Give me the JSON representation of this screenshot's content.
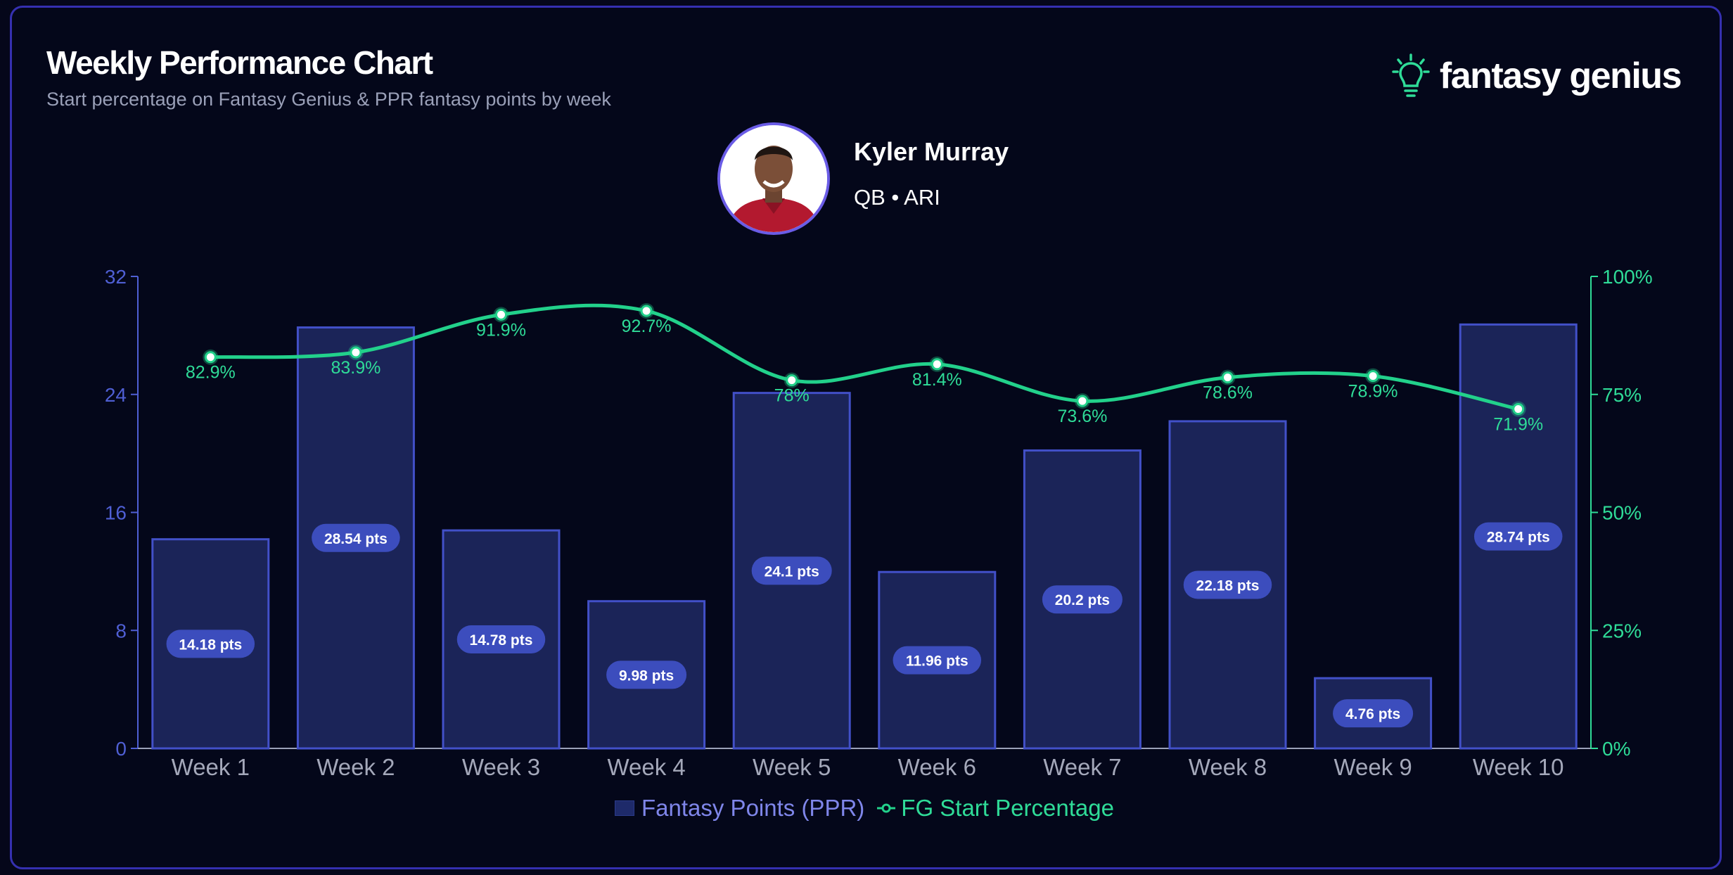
{
  "header": {
    "title": "Weekly Performance Chart",
    "subtitle": "Start percentage on Fantasy Genius & PPR fantasy points by week"
  },
  "brand": {
    "name": "fantasy genius",
    "icon": "lightbulb-icon",
    "icon_color": "#2fdc98"
  },
  "player": {
    "name": "Kyler Murray",
    "meta": "QB • ARI"
  },
  "colors": {
    "background": "#04071a",
    "bar_fill": "#1b2458",
    "bar_stroke": "#4250c8",
    "bar_label_bg": "#3c4dbd",
    "line": "#22d18b",
    "left_axis": "#4f5fd4",
    "right_axis": "#2fdc98"
  },
  "legend": {
    "bars": "Fantasy Points (PPR)",
    "line": "FG Start Percentage"
  },
  "chart_data": {
    "type": "bar",
    "categories": [
      "Week 1",
      "Week 2",
      "Week 3",
      "Week 4",
      "Week 5",
      "Week 6",
      "Week 7",
      "Week 8",
      "Week 9",
      "Week 10"
    ],
    "series": [
      {
        "name": "Fantasy Points (PPR)",
        "type": "bar",
        "axis": "left",
        "values": [
          14.18,
          28.54,
          14.78,
          9.98,
          24.1,
          11.96,
          20.2,
          22.18,
          4.76,
          28.74
        ],
        "labels": [
          "14.18 pts",
          "28.54 pts",
          "14.78 pts",
          "9.98 pts",
          "24.1 pts",
          "11.96 pts",
          "20.2 pts",
          "22.18 pts",
          "4.76 pts",
          "28.74 pts"
        ]
      },
      {
        "name": "FG Start Percentage",
        "type": "line",
        "axis": "right",
        "values": [
          82.9,
          83.9,
          91.9,
          92.7,
          78,
          81.4,
          73.6,
          78.6,
          78.9,
          71.9
        ],
        "labels": [
          "82.9%",
          "83.9%",
          "91.9%",
          "92.7%",
          "78%",
          "81.4%",
          "73.6%",
          "78.6%",
          "78.9%",
          "71.9%"
        ]
      }
    ],
    "y_left": {
      "range": [
        0,
        32
      ],
      "ticks": [
        "0",
        "8",
        "16",
        "24",
        "32"
      ]
    },
    "y_right": {
      "range": [
        0,
        100
      ],
      "ticks": [
        "0%",
        "25%",
        "50%",
        "75%",
        "100%"
      ]
    },
    "grid": false,
    "legend_position": "bottom-center"
  }
}
